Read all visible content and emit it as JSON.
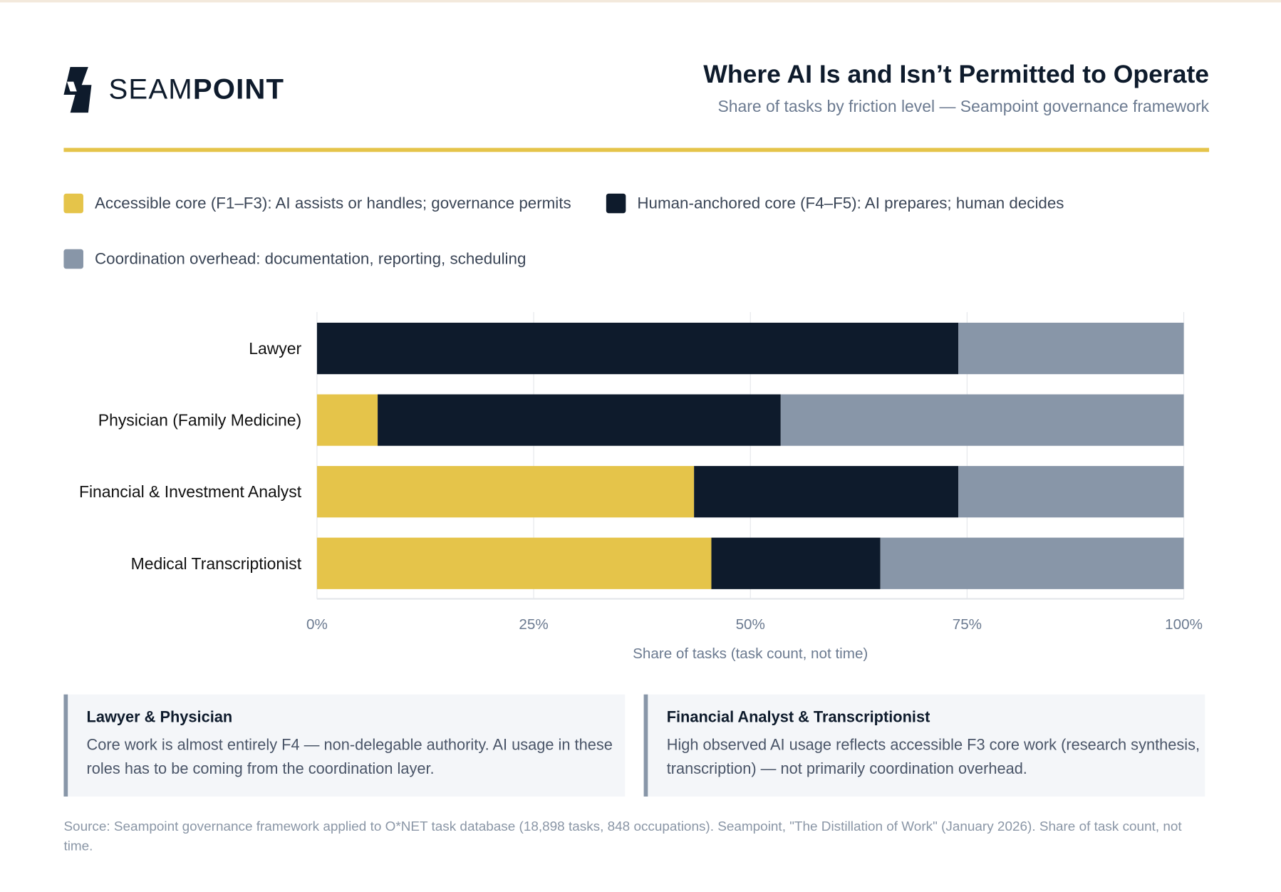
{
  "brand": {
    "name_light": "SEAM",
    "name_bold": "POINT"
  },
  "header": {
    "title": "Where AI Is and Isn’t Permitted to Operate",
    "subtitle": "Share of tasks by friction level — Seampoint governance framework"
  },
  "legend": [
    {
      "label": "Accessible core (F1–F3): AI assists or handles; governance permits",
      "color": "#e5c44a"
    },
    {
      "label": "Human-anchored core (F4–F5): AI prepares; human decides",
      "color": "#0e1b2c"
    },
    {
      "label": "Coordination overhead: documentation, reporting, scheduling",
      "color": "#8896a8"
    }
  ],
  "chart_data": {
    "type": "bar",
    "orientation": "horizontal",
    "stacked": true,
    "categories": [
      "Lawyer",
      "Physician (Family Medicine)",
      "Financial & Investment Analyst",
      "Medical Transcriptionist"
    ],
    "series": [
      {
        "name": "Accessible core (F1–F3): AI assists or handles; governance permits",
        "color": "#e5c44a",
        "values": [
          0,
          7,
          43.5,
          45.5
        ]
      },
      {
        "name": "Human-anchored core (F4–F5): AI prepares; human decides",
        "color": "#0e1b2c",
        "values": [
          74,
          46.5,
          30.5,
          19.5
        ]
      },
      {
        "name": "Coordination overhead: documentation, reporting, scheduling",
        "color": "#8896a8",
        "values": [
          26,
          46.5,
          26,
          35
        ]
      }
    ],
    "xlabel": "Share of tasks (task count, not time)",
    "xlim": [
      0,
      100
    ],
    "xticks": [
      "0%",
      "25%",
      "50%",
      "75%",
      "100%"
    ],
    "grid": true,
    "legend_position": "top"
  },
  "cards": [
    {
      "title": "Lawyer & Physician",
      "text": "Core work is almost entirely F4 — non-delegable authority. AI usage in these roles has to be coming from the coordination layer."
    },
    {
      "title": "Financial Analyst & Transcriptionist",
      "text": "High observed AI usage reflects accessible F3 core work (research synthesis, transcription) — not primarily coordination overhead."
    }
  ],
  "source": "Source: Seampoint governance framework applied to O*NET task database (18,898 tasks, 848 occupations). Seampoint, \"The Distillation of Work\" (January 2026). Share of task count, not time."
}
